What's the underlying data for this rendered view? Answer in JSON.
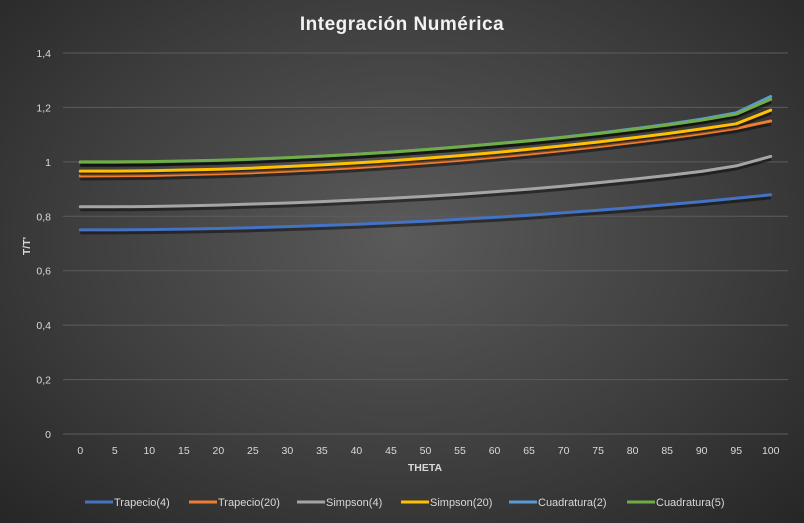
{
  "chart_data": {
    "type": "line",
    "title": "Integración  Numérica",
    "xlabel": "THETA",
    "ylabel": "T/T'",
    "x": [
      0,
      5,
      10,
      15,
      20,
      25,
      30,
      35,
      40,
      45,
      50,
      55,
      60,
      65,
      70,
      75,
      80,
      85,
      90,
      95,
      100
    ],
    "ylim": [
      0,
      1.4
    ],
    "yticks": [
      "0",
      "0,2",
      "0,4",
      "0,6",
      "0,8",
      "1",
      "1,2",
      "1,4"
    ],
    "grid": true,
    "legend_position": "bottom",
    "series": [
      {
        "name": "Trapecio(4)",
        "color": "#4472c4",
        "values": [
          0.75,
          0.75,
          0.751,
          0.753,
          0.755,
          0.758,
          0.762,
          0.766,
          0.771,
          0.776,
          0.782,
          0.789,
          0.796,
          0.804,
          0.813,
          0.822,
          0.832,
          0.843,
          0.854,
          0.866,
          0.879
        ]
      },
      {
        "name": "Trapecio(20)",
        "color": "#ed7d31",
        "values": [
          0.948,
          0.949,
          0.95,
          0.953,
          0.956,
          0.96,
          0.966,
          0.972,
          0.979,
          0.987,
          0.996,
          1.006,
          1.017,
          1.029,
          1.042,
          1.056,
          1.071,
          1.087,
          1.104,
          1.123,
          1.15
        ]
      },
      {
        "name": "Simpson(4)",
        "color": "#a5a5a5",
        "values": [
          0.835,
          0.835,
          0.836,
          0.838,
          0.841,
          0.845,
          0.849,
          0.854,
          0.86,
          0.866,
          0.873,
          0.881,
          0.89,
          0.9,
          0.911,
          0.923,
          0.936,
          0.95,
          0.965,
          0.985,
          1.02
        ]
      },
      {
        "name": "Simpson(20)",
        "color": "#ffc000",
        "values": [
          0.966,
          0.966,
          0.967,
          0.97,
          0.973,
          0.977,
          0.983,
          0.989,
          0.996,
          1.004,
          1.013,
          1.023,
          1.034,
          1.046,
          1.059,
          1.073,
          1.088,
          1.104,
          1.121,
          1.14,
          1.19
        ]
      },
      {
        "name": "Cuadratura(2)",
        "color": "#5b9bd5",
        "values": [
          0.998,
          0.998,
          0.999,
          1.002,
          1.005,
          1.009,
          1.015,
          1.021,
          1.028,
          1.036,
          1.045,
          1.055,
          1.066,
          1.078,
          1.091,
          1.105,
          1.121,
          1.138,
          1.157,
          1.18,
          1.24
        ]
      },
      {
        "name": "Cuadratura(5)",
        "color": "#70ad47",
        "values": [
          1.0,
          1.0,
          1.001,
          1.003,
          1.006,
          1.01,
          1.015,
          1.021,
          1.028,
          1.036,
          1.045,
          1.055,
          1.066,
          1.077,
          1.09,
          1.104,
          1.119,
          1.135,
          1.153,
          1.175,
          1.23
        ]
      }
    ]
  }
}
